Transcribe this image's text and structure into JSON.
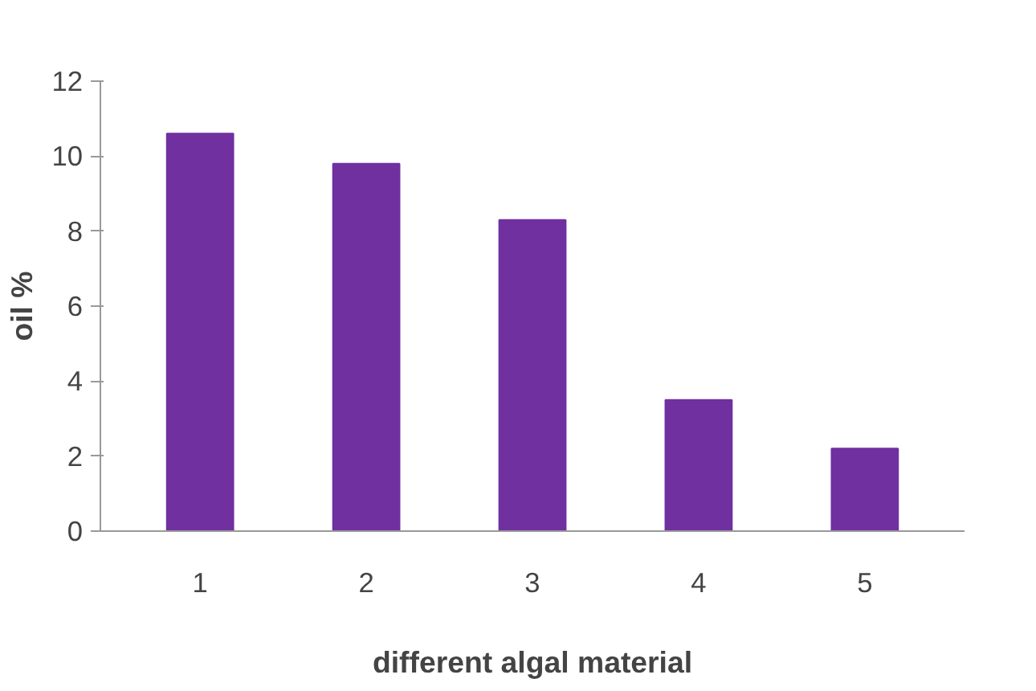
{
  "chart_data": {
    "type": "bar",
    "xlabel": "different algal material",
    "ylabel": "oil %",
    "categories": [
      "1",
      "2",
      "3",
      "4",
      "5"
    ],
    "values": [
      10.6,
      9.8,
      8.3,
      3.5,
      2.2
    ],
    "color": "#7030a0",
    "ylim": [
      0,
      12
    ],
    "yticks": [
      0,
      2,
      4,
      6,
      8,
      10,
      12
    ],
    "grid": false
  }
}
